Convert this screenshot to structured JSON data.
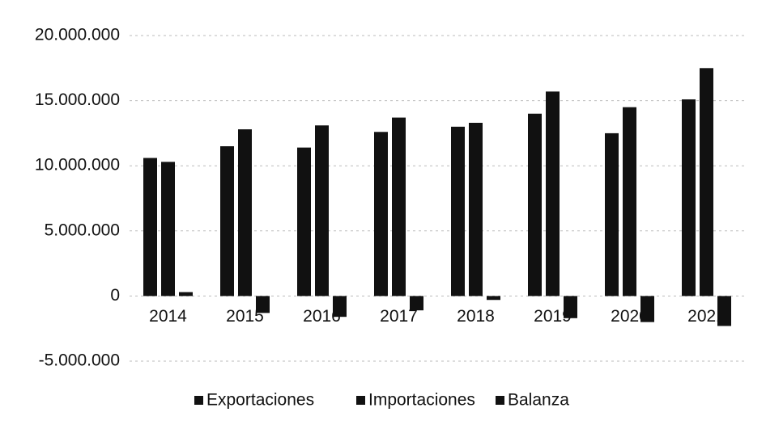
{
  "chart_data": {
    "type": "bar",
    "categories": [
      "2014",
      "2015",
      "2016",
      "2017",
      "2018",
      "2019",
      "2020",
      "2021"
    ],
    "series": [
      {
        "name": "Exportaciones",
        "color": "#111111",
        "values": [
          10600000,
          11500000,
          11400000,
          12600000,
          13000000,
          14000000,
          12500000,
          15100000
        ]
      },
      {
        "name": "Importaciones",
        "color": "#111111",
        "values": [
          10300000,
          12800000,
          13100000,
          13700000,
          13300000,
          15700000,
          14500000,
          17500000
        ]
      },
      {
        "name": "Balanza",
        "color": "#111111",
        "values": [
          300000,
          -1300000,
          -1600000,
          -1100000,
          -300000,
          -1700000,
          -2000000,
          -2300000
        ]
      }
    ],
    "ylim": [
      -5000000,
      20000000
    ],
    "yticks": [
      {
        "value": -5000000,
        "label": "-5.000.000"
      },
      0,
      {
        "value": 5000000,
        "label": "5.000.000"
      },
      {
        "value": 10000000,
        "label": "10.000.000"
      },
      {
        "value": 15000000,
        "label": "15.000.000"
      },
      {
        "value": 20000000,
        "label": "20.000.000"
      }
    ],
    "grid": true,
    "legend": "bottom"
  }
}
